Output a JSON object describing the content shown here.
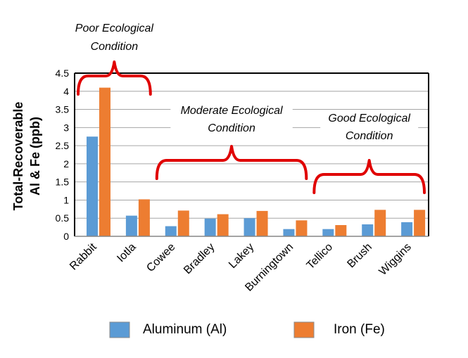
{
  "chart_data": {
    "type": "bar",
    "title": "",
    "xlabel": "",
    "ylabel_lines": [
      "Total-Recoverable",
      "Al & Fe  (ppb)"
    ],
    "ylim": [
      0,
      4.5
    ],
    "yticks": [
      "0",
      "0.5",
      "1",
      "1.5",
      "2",
      "2.5",
      "3",
      "3.5",
      "4",
      "4.5"
    ],
    "grid": true,
    "categories": [
      "Rabbit",
      "Iotla",
      "Cowee",
      "Bradley",
      "Lakey",
      "Burningtown",
      "Tellico",
      "Brush",
      "Wiggins"
    ],
    "series": [
      {
        "name": "Aluminum (Al)",
        "color": "#5B9BD5",
        "values": [
          2.75,
          0.57,
          0.28,
          0.49,
          0.5,
          0.2,
          0.2,
          0.33,
          0.39
        ]
      },
      {
        "name": "Iron (Fe)",
        "color": "#ED7D31",
        "values": [
          4.1,
          1.02,
          0.71,
          0.61,
          0.7,
          0.44,
          0.31,
          0.73,
          0.73
        ]
      }
    ],
    "annotations": [
      {
        "lines": [
          "Poor Ecological",
          "Condition"
        ],
        "from": "Rabbit",
        "to": "Iotla"
      },
      {
        "lines": [
          "Moderate Ecological",
          "Condition"
        ],
        "from": "Cowee",
        "to": "Burningtown"
      },
      {
        "lines": [
          "Good Ecological",
          "Condition"
        ],
        "from": "Tellico",
        "to": "Wiggins"
      }
    ],
    "bracket_color": "#E00000",
    "legend_position": "bottom"
  }
}
